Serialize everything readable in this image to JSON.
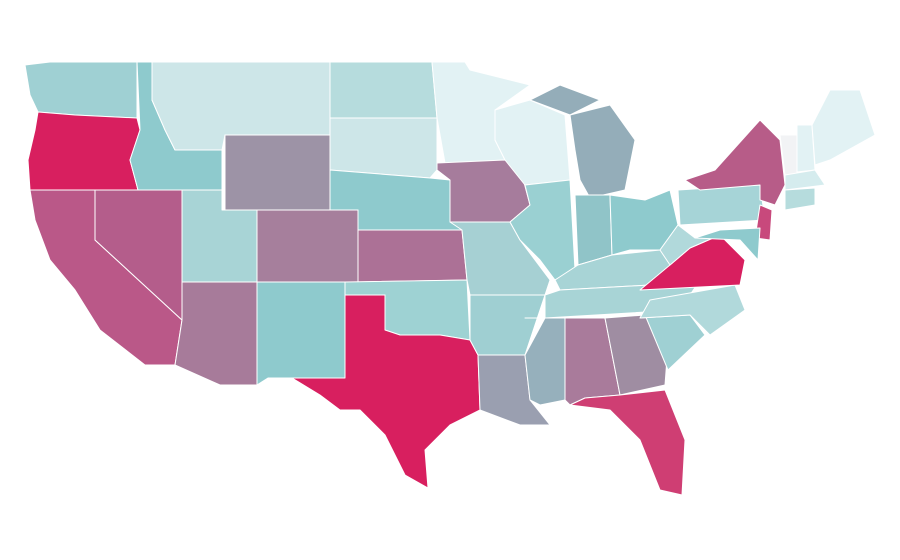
{
  "map": {
    "type": "choropleth",
    "stroke": "#ffffff",
    "regions": [
      {
        "color": "#9fd0d3"
      },
      {
        "color": "#d81f5f"
      },
      {
        "color": "#8ecacd"
      },
      {
        "color": "#cde6e8"
      },
      {
        "color": "#9d93a6"
      },
      {
        "color": "#b6dcdd"
      },
      {
        "color": "#cde6e8"
      },
      {
        "color": "#8ecacd"
      },
      {
        "color": "#ba5888"
      },
      {
        "color": "#b45d8b"
      },
      {
        "color": "#a8d4d6"
      },
      {
        "color": "#a77b9a"
      },
      {
        "color": "#a67f9c"
      },
      {
        "color": "#8ecacd"
      },
      {
        "color": "#ac7196"
      },
      {
        "color": "#9ed2d3"
      },
      {
        "color": "#d81f5f"
      },
      {
        "color": "#e2f2f4"
      },
      {
        "color": "#a67c9c"
      },
      {
        "color": "#a6d0d3"
      },
      {
        "color": "#9fcfd2"
      },
      {
        "color": "#9a9fb0"
      },
      {
        "color": "#e2f2f4"
      },
      {
        "color": "#9ad0d2"
      },
      {
        "color": "#94adb9"
      },
      {
        "color": "#94adb9"
      },
      {
        "color": "#90c4c8"
      },
      {
        "color": "#8ecacd"
      },
      {
        "color": "#a8d4d6"
      },
      {
        "color": "#a8d4d6"
      },
      {
        "color": "#96b0bc"
      },
      {
        "color": "#a97b9b"
      },
      {
        "color": "#9f8da2"
      },
      {
        "color": "#cf3e73"
      },
      {
        "color": "#9fd0d3"
      },
      {
        "color": "#b1d9db"
      },
      {
        "color": "#d81f5f"
      },
      {
        "color": "#b1d9db"
      },
      {
        "color": "#a6d4d7"
      },
      {
        "color": "#b75c88"
      },
      {
        "color": "#c8497c"
      },
      {
        "color": "#8ecacd"
      },
      {
        "color": "#f2f3f5"
      },
      {
        "color": "#e2f2f4"
      },
      {
        "color": "#e2f2f4"
      },
      {
        "color": "#d5ecee"
      },
      {
        "color": "#b6dcdd"
      }
    ]
  }
}
